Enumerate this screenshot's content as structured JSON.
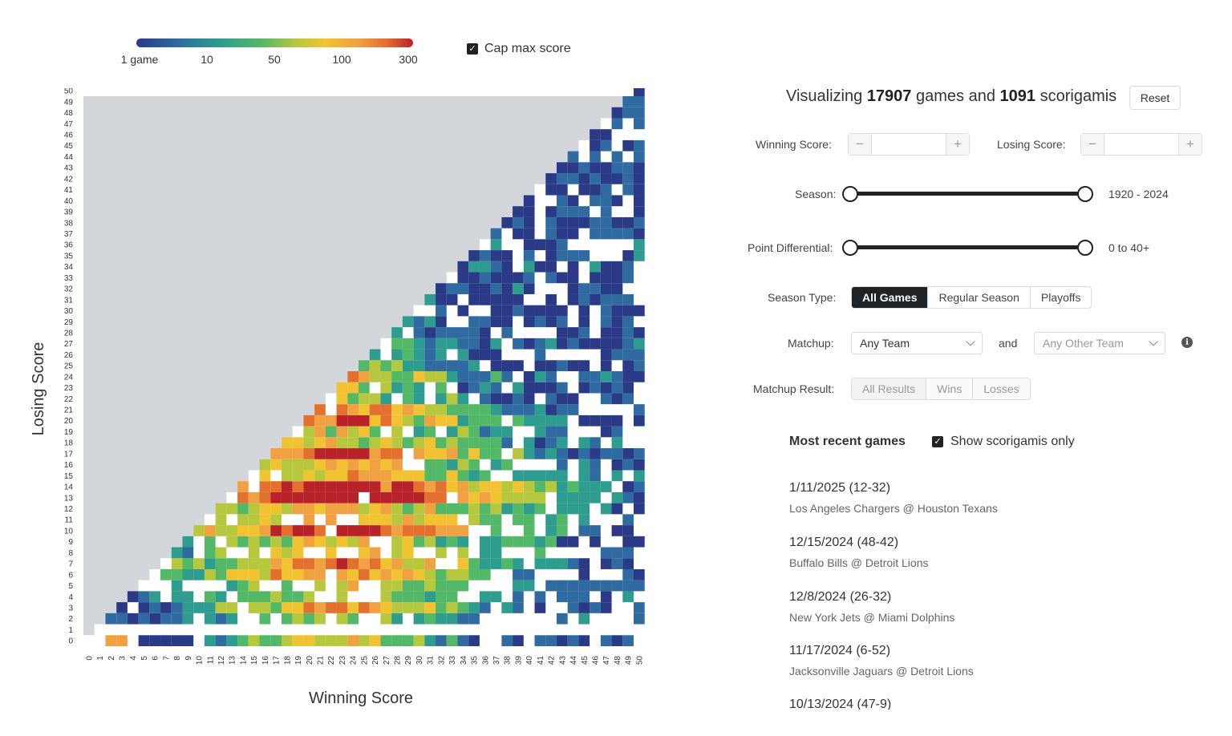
{
  "legend": {
    "labels": [
      "1 game",
      "10",
      "50",
      "100",
      "300"
    ],
    "cap_label": "Cap max score",
    "cap_checked": true
  },
  "chart_data": {
    "type": "heatmap",
    "xlabel": "Winning Score",
    "ylabel": "Losing Score",
    "x_range": [
      0,
      50
    ],
    "y_range": [
      0,
      50
    ],
    "x_ticks": [
      "0",
      "1",
      "2",
      "3",
      "4",
      "5",
      "6",
      "7",
      "8",
      "9",
      "10",
      "11",
      "12",
      "13",
      "14",
      "15",
      "16",
      "17",
      "18",
      "19",
      "20",
      "21",
      "22",
      "23",
      "24",
      "25",
      "26",
      "27",
      "28",
      "29",
      "30",
      "31",
      "32",
      "33",
      "34",
      "35",
      "36",
      "37",
      "38",
      "39",
      "40",
      "41",
      "42",
      "43",
      "44",
      "45",
      "46",
      "47",
      "48",
      "49",
      "50"
    ],
    "y_ticks": [
      "0",
      "1",
      "2",
      "3",
      "4",
      "5",
      "6",
      "7",
      "8",
      "9",
      "10",
      "11",
      "12",
      "13",
      "14",
      "15",
      "16",
      "17",
      "18",
      "19",
      "20",
      "21",
      "22",
      "23",
      "24",
      "25",
      "26",
      "27",
      "28",
      "29",
      "30",
      "31",
      "32",
      "33",
      "34",
      "35",
      "36",
      "37",
      "38",
      "39",
      "40",
      "41",
      "42",
      "43",
      "44",
      "45",
      "46",
      "47",
      "48",
      "49",
      "50"
    ],
    "color_scale": {
      "stops": [
        "#2b3a86",
        "#2f6aa0",
        "#2e9c8e",
        "#53b867",
        "#b8c83e",
        "#f1c232",
        "#f0a142",
        "#e4702f",
        "#b8232a"
      ],
      "impossible_color": "#d3d6db",
      "empty_color": "#ffffff"
    },
    "legend_values": [
      1,
      10,
      50,
      100,
      300
    ]
  },
  "panel": {
    "summary": {
      "prefix": "Visualizing",
      "games": "17907",
      "middle": "games and",
      "scorigamis": "1091",
      "suffix": "scorigamis"
    },
    "reset_label": "Reset",
    "winning_score_label": "Winning Score:",
    "losing_score_label": "Losing Score:",
    "winning_score_value": "",
    "losing_score_value": "",
    "minus_glyph": "−",
    "plus_glyph": "+",
    "season_label": "Season:",
    "season_value": "1920 - 2024",
    "point_diff_label": "Point Differential:",
    "point_diff_value": "0 to 40+",
    "season_type_label": "Season Type:",
    "season_types": [
      "All Games",
      "Regular Season",
      "Playoffs"
    ],
    "season_type_active": 0,
    "matchup_label": "Matchup:",
    "matchup_team1": "Any Team",
    "matchup_and": "and",
    "matchup_team2": "Any Other Team",
    "matchup_result_label": "Matchup Result:",
    "matchup_results": [
      "All Results",
      "Wins",
      "Losses"
    ],
    "info_glyph": "i"
  },
  "recent": {
    "title": "Most recent games",
    "scorigami_only_label": "Show scorigamis only",
    "scorigami_only_checked": true,
    "games": [
      {
        "date_score": "1/11/2025 (12-32)",
        "matchup": "Los Angeles Chargers @ Houston Texans"
      },
      {
        "date_score": "12/15/2024 (48-42)",
        "matchup": "Buffalo Bills @ Detroit Lions"
      },
      {
        "date_score": "12/8/2024 (26-32)",
        "matchup": "New York Jets @ Miami Dolphins"
      },
      {
        "date_score": "11/17/2024 (6-52)",
        "matchup": "Jacksonville Jaguars @ Detroit Lions"
      },
      {
        "date_score": "10/13/2024 (47-9)",
        "matchup": ""
      }
    ]
  }
}
